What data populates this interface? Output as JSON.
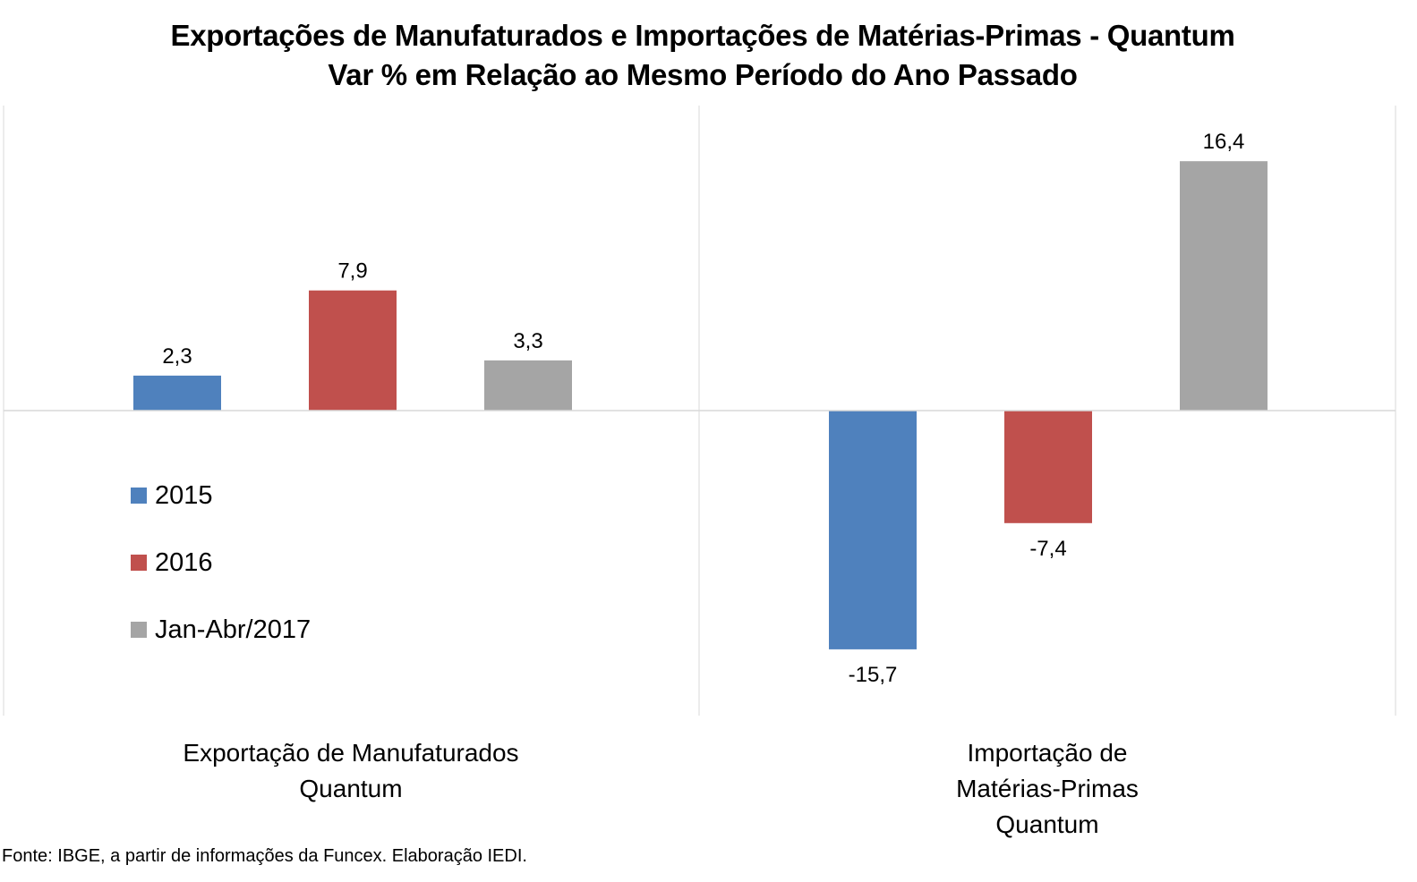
{
  "chart_data": {
    "type": "bar",
    "title_lines": [
      "Exportações de Manufaturados e Importações de Matérias-Primas - Quantum",
      "Var % em Relação ao Mesmo Período do Ano Passado"
    ],
    "categories": [
      [
        "Exportação de Manufaturados",
        "Quantum"
      ],
      [
        "Importação de",
        "Matérias-Primas",
        "Quantum"
      ]
    ],
    "series": [
      {
        "name": "2015",
        "color": "#4f81bd",
        "values": [
          2.3,
          -15.7
        ],
        "labels": [
          "2,3",
          "-15,7"
        ]
      },
      {
        "name": "2016",
        "color": "#c0504d",
        "values": [
          7.9,
          -7.4
        ],
        "labels": [
          "7,9",
          "-7,4"
        ]
      },
      {
        "name": "Jan-Abr/2017",
        "color": "#a5a5a5",
        "values": [
          3.3,
          16.4
        ],
        "labels": [
          "3,3",
          "16,4"
        ]
      }
    ],
    "ylim": [
      -20,
      20
    ],
    "grid": false,
    "legend_position": "left, below zero line"
  },
  "source_note": "Fonte: IBGE, a partir de  informações da Funcex. Elaboração IEDI."
}
